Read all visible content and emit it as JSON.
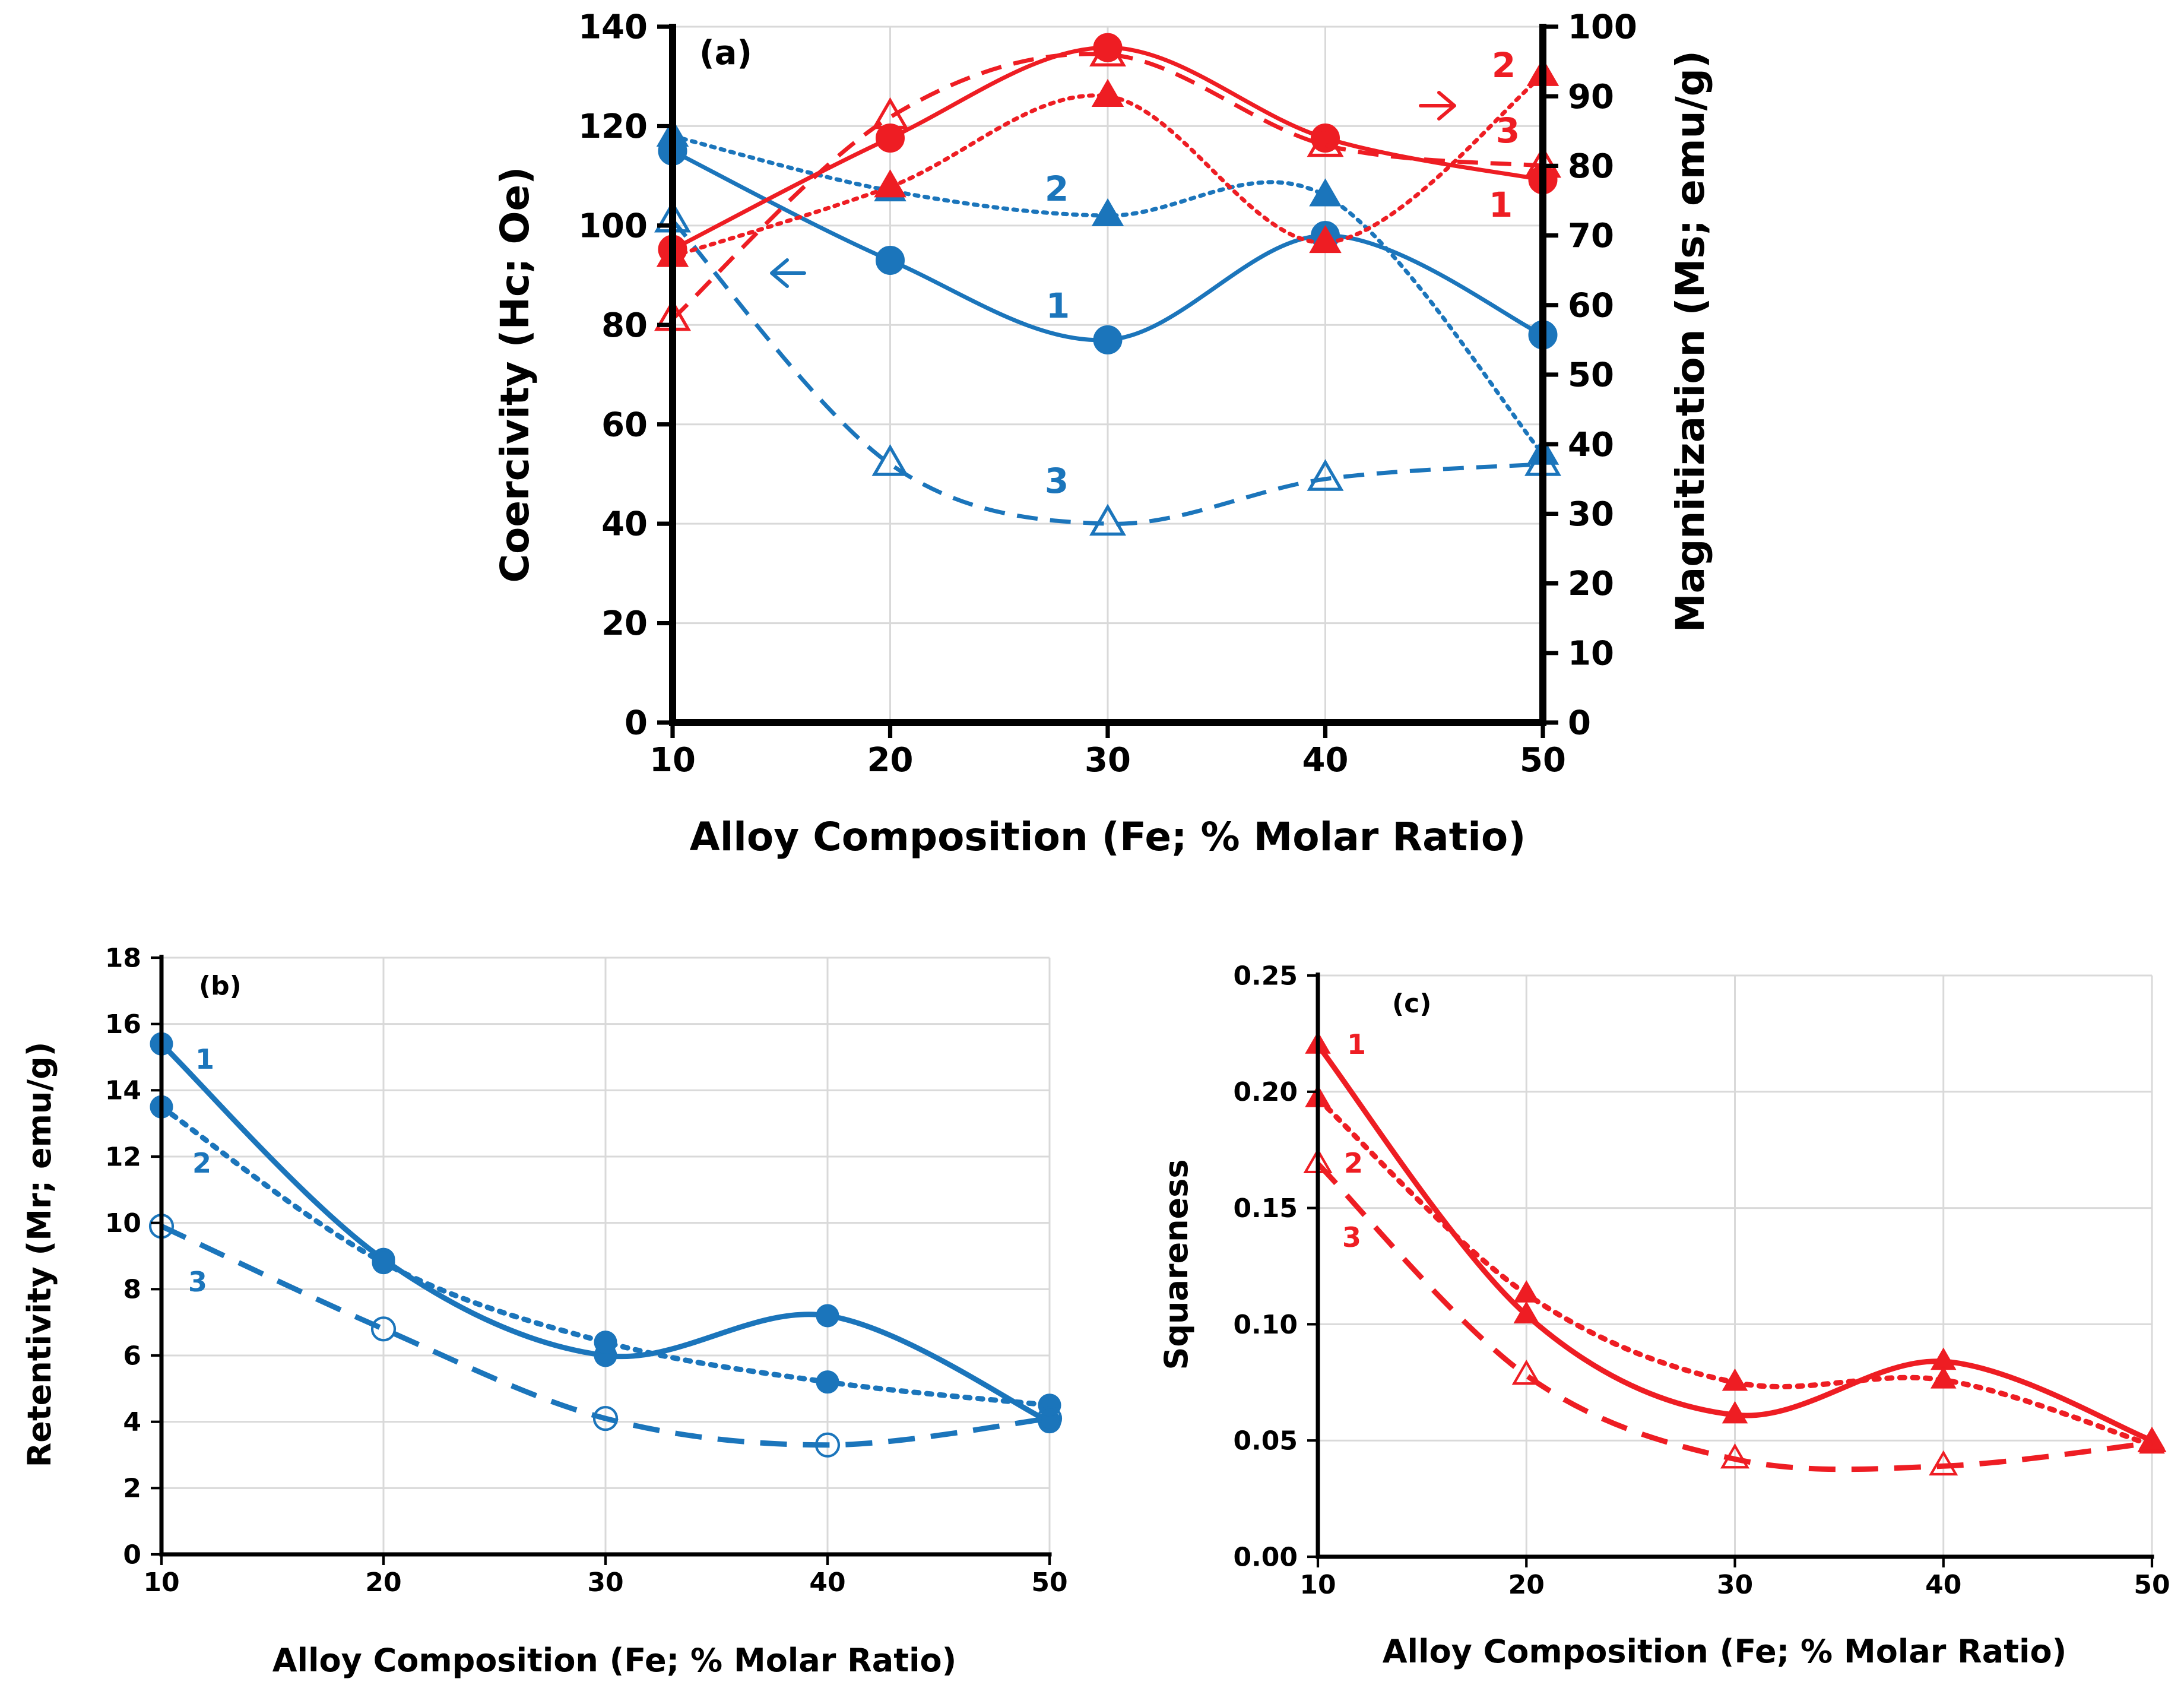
{
  "colors": {
    "blue": "#1b75bb",
    "red": "#ee1d23",
    "axis": "#000000",
    "grid": "#d9d9d9",
    "tick_label": "#000000"
  },
  "chart_data": [
    {
      "id": "a",
      "type": "line",
      "panel_label": "(a)",
      "xlabel": "Alloy Composition (Fe; % Molar Ratio)",
      "ylabel": "Coercivity (Hc; Oe)",
      "y2label": "Magnitization (Ms; emu/g)",
      "x": [
        10,
        20,
        30,
        40,
        50
      ],
      "x_ticks": [
        "10",
        "20",
        "30",
        "40",
        "50"
      ],
      "xlim": [
        10,
        50
      ],
      "ylim": [
        0,
        140
      ],
      "y_ticks": [
        "0",
        "20",
        "40",
        "60",
        "80",
        "100",
        "120",
        "140"
      ],
      "y2lim": [
        0,
        100
      ],
      "y2_ticks": [
        "0",
        "10",
        "20",
        "30",
        "40",
        "50",
        "60",
        "70",
        "80",
        "90",
        "100"
      ],
      "grid": true,
      "series": [
        {
          "name": "1",
          "axis": "left",
          "color": "blue",
          "style": "solid",
          "marker": "circle",
          "values": [
            115,
            93,
            77,
            98,
            78
          ]
        },
        {
          "name": "2",
          "axis": "left",
          "color": "blue",
          "style": "dotted",
          "marker": "triangle",
          "values": [
            118,
            107,
            102,
            106,
            54
          ]
        },
        {
          "name": "3",
          "axis": "left",
          "color": "blue",
          "style": "dashed",
          "marker": "open-triangle",
          "values": [
            101,
            52,
            40,
            49,
            52
          ]
        },
        {
          "name": "1",
          "axis": "right",
          "color": "red",
          "style": "solid",
          "marker": "circle",
          "values": [
            68,
            84,
            97,
            84,
            78
          ]
        },
        {
          "name": "2",
          "axis": "right",
          "color": "red",
          "style": "dotted",
          "marker": "triangle",
          "values": [
            67,
            77,
            90,
            69,
            93
          ]
        },
        {
          "name": "3",
          "axis": "right",
          "color": "red",
          "style": "dashed",
          "marker": "open-triangle",
          "values": [
            58,
            87,
            96,
            83,
            80
          ]
        }
      ],
      "annotations": [
        "1",
        "2",
        "3",
        "1",
        "2",
        "3"
      ],
      "arrows": [
        "left-arrow (blue series use left axis)",
        "right-arrow (red series use right axis)"
      ]
    },
    {
      "id": "b",
      "type": "line",
      "panel_label": "(b)",
      "xlabel": "Alloy Composition (Fe; % Molar Ratio)",
      "ylabel": "Retentivity  (Mr; emu/g)",
      "x": [
        10,
        20,
        30,
        40,
        50
      ],
      "x_ticks": [
        "10",
        "20",
        "30",
        "40",
        "50"
      ],
      "xlim": [
        10,
        50
      ],
      "ylim": [
        0,
        18
      ],
      "y_ticks": [
        "0",
        "2",
        "4",
        "6",
        "8",
        "10",
        "12",
        "14",
        "16",
        "18"
      ],
      "grid": true,
      "series": [
        {
          "name": "1",
          "color": "blue",
          "style": "solid",
          "marker": "circle",
          "values": [
            15.4,
            8.9,
            6.0,
            7.2,
            4.0
          ]
        },
        {
          "name": "2",
          "color": "blue",
          "style": "dotted",
          "marker": "circle",
          "values": [
            13.5,
            8.8,
            6.4,
            5.2,
            4.5
          ]
        },
        {
          "name": "3",
          "color": "blue",
          "style": "dashed",
          "marker": "open-circle",
          "values": [
            9.9,
            6.8,
            4.1,
            3.3,
            4.1
          ]
        }
      ]
    },
    {
      "id": "c",
      "type": "line",
      "panel_label": "(c)",
      "xlabel": "Alloy Composition (Fe; % Molar Ratio)",
      "ylabel": "Squareness",
      "x": [
        10,
        20,
        30,
        40,
        50
      ],
      "x_ticks": [
        "10",
        "20",
        "30",
        "40",
        "50"
      ],
      "xlim": [
        10,
        50
      ],
      "ylim": [
        0,
        0.25
      ],
      "y_ticks": [
        "0.00",
        "0.05",
        "0.10",
        "0.15",
        "0.20",
        "0.25"
      ],
      "grid": true,
      "series": [
        {
          "name": "1",
          "color": "red",
          "style": "solid",
          "marker": "triangle",
          "values": [
            0.22,
            0.104,
            0.061,
            0.084,
            0.05
          ]
        },
        {
          "name": "2",
          "color": "red",
          "style": "dotted",
          "marker": "triangle",
          "values": [
            0.197,
            0.113,
            0.075,
            0.076,
            0.048
          ]
        },
        {
          "name": "3",
          "color": "red",
          "style": "dashed",
          "marker": "open-triangle",
          "values": [
            0.169,
            0.078,
            0.042,
            0.039,
            0.049
          ]
        }
      ]
    }
  ]
}
